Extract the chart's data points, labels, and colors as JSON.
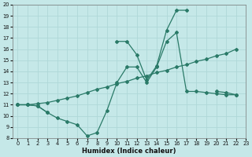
{
  "line1_x": [
    0,
    1,
    2,
    3,
    4,
    5,
    6,
    7,
    8,
    9,
    10,
    11,
    12,
    13,
    14,
    15,
    16,
    17,
    18,
    19,
    20,
    21,
    22
  ],
  "line1_y": [
    11,
    11,
    10.9,
    10.3,
    9.8,
    9.5,
    9.2,
    8.2,
    8.5,
    10.5,
    13.0,
    14.4,
    14.4,
    13.0,
    14.4,
    16.7,
    17.5,
    12.2,
    12.2,
    12.1,
    12.0,
    11.9,
    11.9
  ],
  "line2_x": [
    0,
    1,
    2,
    3,
    4,
    5,
    6,
    7,
    8,
    9,
    10,
    11,
    12,
    13,
    14,
    15,
    16,
    17,
    18,
    19,
    20,
    21,
    22
  ],
  "line2_y": [
    11.0,
    11.0,
    11.1,
    11.2,
    11.4,
    11.6,
    11.8,
    12.1,
    12.4,
    12.6,
    12.9,
    13.1,
    13.4,
    13.6,
    13.9,
    14.1,
    14.4,
    14.6,
    14.9,
    15.1,
    15.4,
    15.6,
    16.0
  ],
  "line3_x": [
    0,
    1,
    2,
    3,
    10,
    11,
    12,
    13,
    14,
    15,
    16,
    17,
    20,
    21,
    22
  ],
  "line3_y": [
    11,
    11,
    10.9,
    10.3,
    16.7,
    16.7,
    15.5,
    13.2,
    14.5,
    17.7,
    19.5,
    19.5,
    12.2,
    12.1,
    11.9
  ],
  "color": "#2a7a68",
  "bg_color": "#c5e8e8",
  "grid_color": "#afd8d8",
  "xlabel": "Humidex (Indice chaleur)",
  "xlim": [
    -0.5,
    23
  ],
  "ylim": [
    8,
    20
  ],
  "yticks": [
    8,
    9,
    10,
    11,
    12,
    13,
    14,
    15,
    16,
    17,
    18,
    19,
    20
  ],
  "xticks": [
    0,
    1,
    2,
    3,
    4,
    5,
    6,
    7,
    8,
    9,
    10,
    11,
    12,
    13,
    14,
    15,
    16,
    17,
    18,
    19,
    20,
    21,
    22,
    23
  ]
}
